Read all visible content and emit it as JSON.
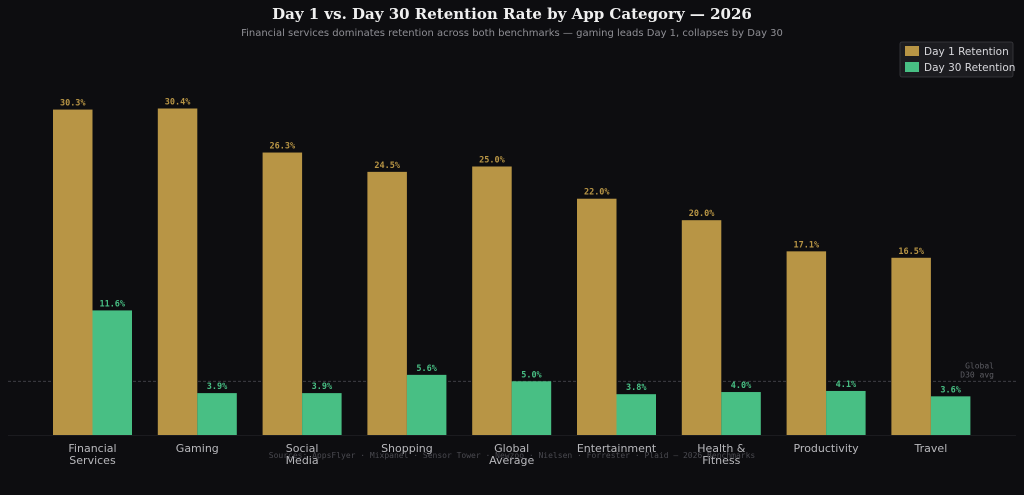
{
  "colors": {
    "background": "#0d0d10",
    "day1": "#b89545",
    "day30": "#48bf84",
    "reference_line": "#45454b"
  },
  "chart_data": {
    "type": "bar",
    "title": "Day 1 vs. Day 30 Retention Rate by App Category — 2026",
    "subtitle": "Financial services dominates retention across both benchmarks — gaming leads Day 1, collapses by Day 30",
    "categories": [
      [
        "Financial",
        "Services"
      ],
      [
        "Gaming"
      ],
      [
        "Social",
        "Media"
      ],
      [
        "Shopping"
      ],
      [
        "Global",
        "Average"
      ],
      [
        "Entertainment"
      ],
      [
        "Health &",
        "Fitness"
      ],
      [
        "Productivity"
      ],
      [
        "Travel"
      ]
    ],
    "series": [
      {
        "name": "Day 1 Retention",
        "values": [
          30.3,
          30.4,
          26.3,
          24.5,
          25.0,
          22.0,
          20.0,
          17.1,
          16.5
        ],
        "labels": [
          "30.3%",
          "30.4%",
          "26.3%",
          "24.5%",
          "25.0%",
          "22.0%",
          "20.0%",
          "17.1%",
          "16.5%"
        ]
      },
      {
        "name": "Day 30 Retention",
        "values": [
          11.6,
          3.9,
          3.9,
          5.6,
          5.0,
          3.8,
          4.0,
          4.1,
          3.6
        ],
        "labels": [
          "11.6%",
          "3.9%",
          "3.9%",
          "5.6%",
          "5.0%",
          "3.8%",
          "4.0%",
          "4.1%",
          "3.6%"
        ]
      }
    ],
    "reference_line": {
      "value": 5.0,
      "label": [
        "Global",
        "D30 avg"
      ]
    },
    "ylim": [
      0,
      30.4
    ],
    "legend": "top-right",
    "grid": false,
    "source": "Sources: AppsFlyer · Mixpanel · Sensor Tower · Newzoo · Nielsen · Forrester · Plaid — 2026 Benchmarks"
  }
}
